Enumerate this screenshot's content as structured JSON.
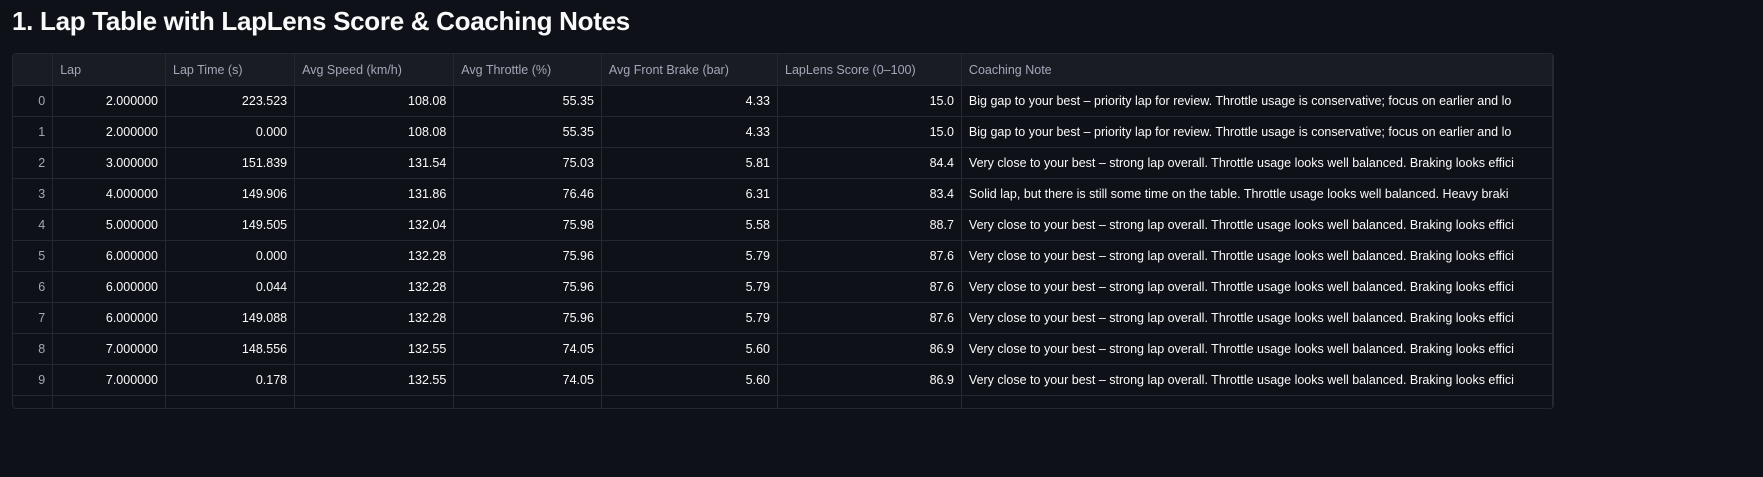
{
  "header": {
    "title": "1. Lap Table with LapLens Score & Coaching Notes"
  },
  "table": {
    "columns": [
      "Lap",
      "Lap Time (s)",
      "Avg Speed (km/h)",
      "Avg Throttle (%)",
      "Avg Front Brake (bar)",
      "LapLens Score (0–100)",
      "Coaching Note"
    ],
    "rows": [
      {
        "index": "0",
        "cells": [
          "2.000000",
          "223.523",
          "108.08",
          "55.35",
          "4.33",
          "15.0",
          "Big gap to your best – priority lap for review. Throttle usage is conservative; focus on earlier and lo"
        ]
      },
      {
        "index": "1",
        "cells": [
          "2.000000",
          "0.000",
          "108.08",
          "55.35",
          "4.33",
          "15.0",
          "Big gap to your best – priority lap for review. Throttle usage is conservative; focus on earlier and lo"
        ]
      },
      {
        "index": "2",
        "cells": [
          "3.000000",
          "151.839",
          "131.54",
          "75.03",
          "5.81",
          "84.4",
          "Very close to your best – strong lap overall. Throttle usage looks well balanced. Braking looks effici"
        ]
      },
      {
        "index": "3",
        "cells": [
          "4.000000",
          "149.906",
          "131.86",
          "76.46",
          "6.31",
          "83.4",
          "Solid lap, but there is still some time on the table. Throttle usage looks well balanced. Heavy braki"
        ]
      },
      {
        "index": "4",
        "cells": [
          "5.000000",
          "149.505",
          "132.04",
          "75.98",
          "5.58",
          "88.7",
          "Very close to your best – strong lap overall. Throttle usage looks well balanced. Braking looks effici"
        ]
      },
      {
        "index": "5",
        "cells": [
          "6.000000",
          "0.000",
          "132.28",
          "75.96",
          "5.79",
          "87.6",
          "Very close to your best – strong lap overall. Throttle usage looks well balanced. Braking looks effici"
        ]
      },
      {
        "index": "6",
        "cells": [
          "6.000000",
          "0.044",
          "132.28",
          "75.96",
          "5.79",
          "87.6",
          "Very close to your best – strong lap overall. Throttle usage looks well balanced. Braking looks effici"
        ]
      },
      {
        "index": "7",
        "cells": [
          "6.000000",
          "149.088",
          "132.28",
          "75.96",
          "5.79",
          "87.6",
          "Very close to your best – strong lap overall. Throttle usage looks well balanced. Braking looks effici"
        ]
      },
      {
        "index": "8",
        "cells": [
          "7.000000",
          "148.556",
          "132.55",
          "74.05",
          "5.60",
          "86.9",
          "Very close to your best – strong lap overall. Throttle usage looks well balanced. Braking looks effici"
        ]
      },
      {
        "index": "9",
        "cells": [
          "7.000000",
          "0.178",
          "132.55",
          "74.05",
          "5.60",
          "86.9",
          "Very close to your best – strong lap overall. Throttle usage looks well balanced. Braking looks effici"
        ]
      }
    ]
  }
}
